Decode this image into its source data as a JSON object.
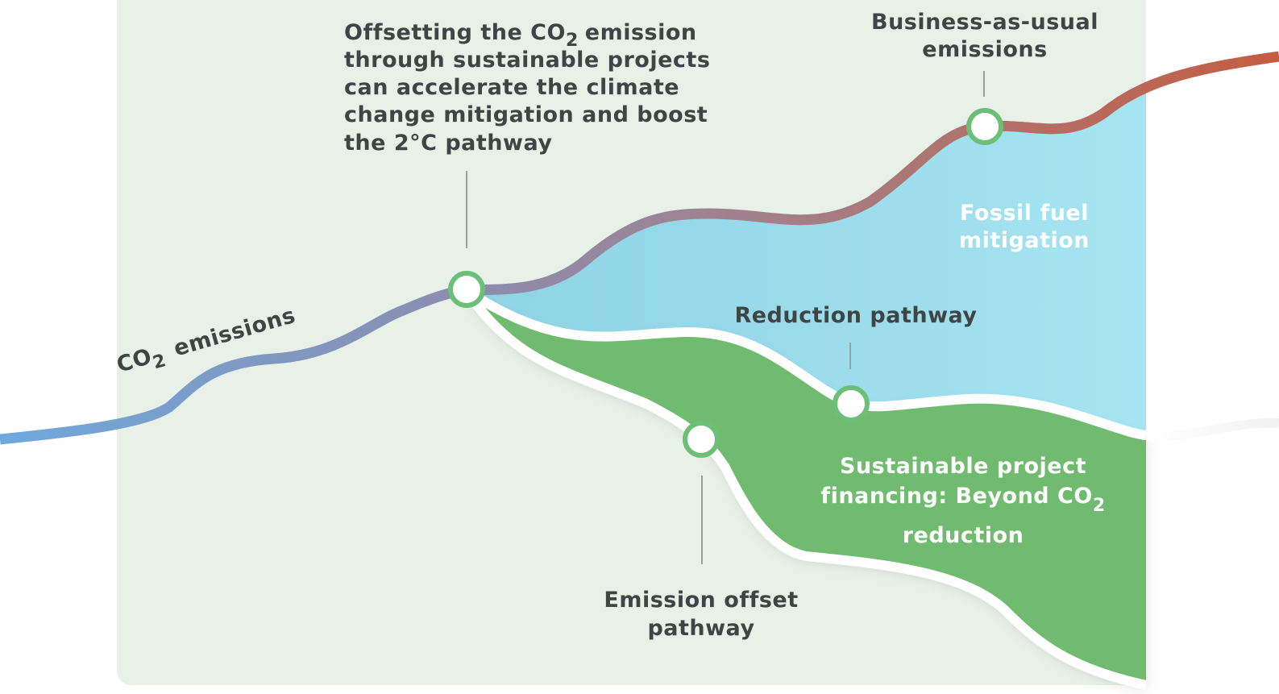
{
  "curve_label": {
    "prefix": "CO",
    "subscript": "2",
    "suffix": "emissions"
  },
  "annotation": {
    "line1_prefix": "Offsetting the CO",
    "line1_subscript": "2",
    "line1_suffix": "emission",
    "lines": [
      "through sustainable projects",
      "can accelerate the climate",
      "change mitigation and boost",
      "the 2°C pathway"
    ]
  },
  "business_as_usual": [
    "Business-as-usual",
    "emissions"
  ],
  "fossil_fuel": [
    "Fossil fuel",
    "mitigation"
  ],
  "reduction": "Reduction pathway",
  "sustainable": {
    "line1": "Sustainable project",
    "line2_prefix": "financing: Beyond CO",
    "line2_subscript": "2",
    "line3": "reduction"
  },
  "offset": [
    "Emission offset",
    "pathway"
  ]
}
